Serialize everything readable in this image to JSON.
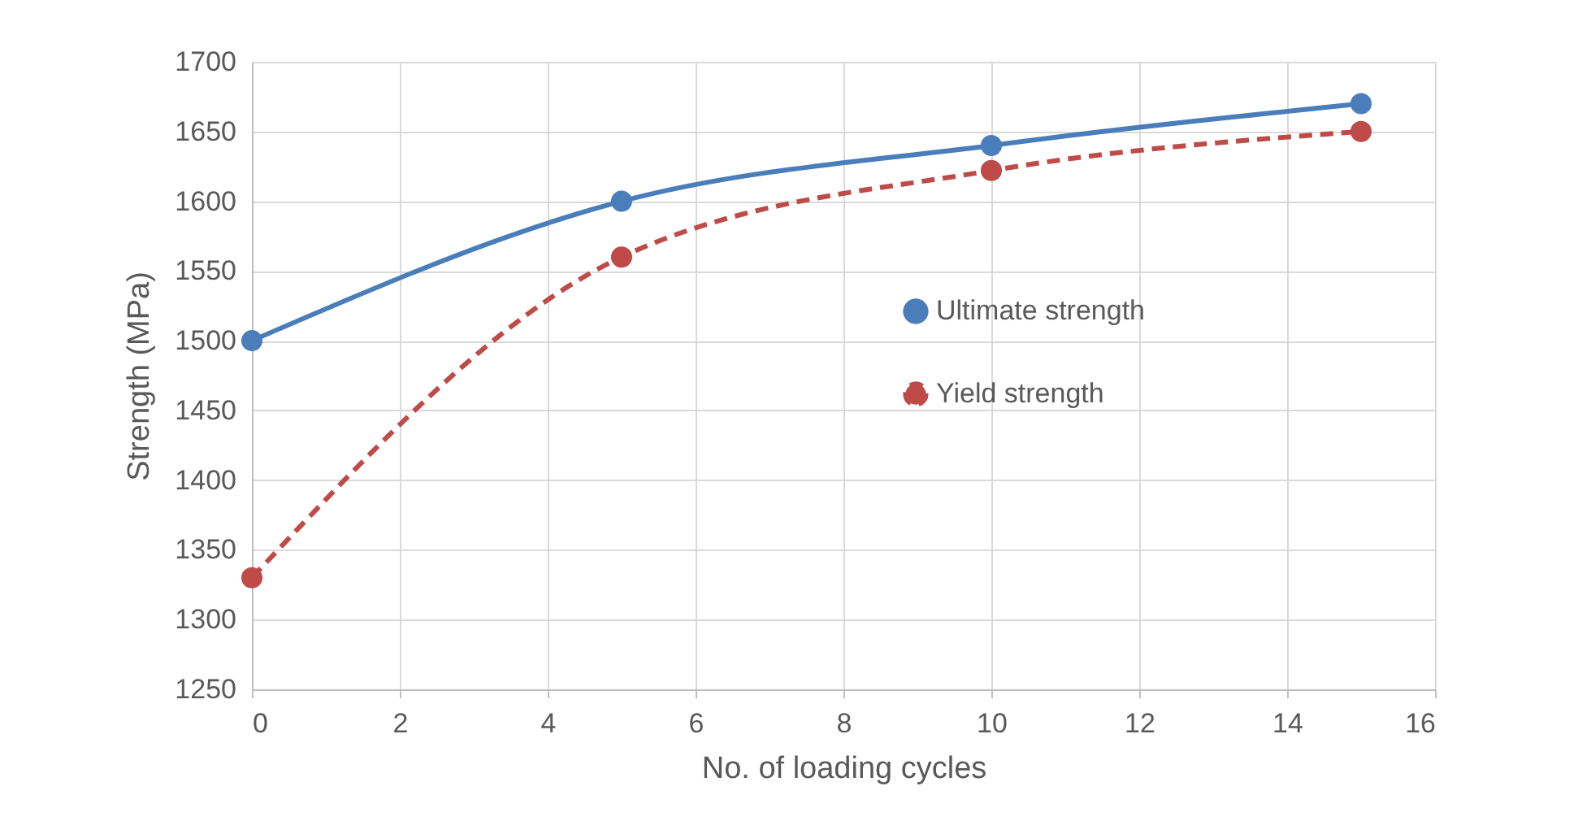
{
  "chart_data": {
    "type": "line",
    "xlabel": "No. of loading cycles",
    "ylabel": "Strength (MPa)",
    "x": [
      0,
      5,
      10,
      15
    ],
    "series": [
      {
        "name": "Ultimate strength",
        "color": "#4a7ebb",
        "values": [
          1500,
          1600,
          1640,
          1670
        ],
        "line_style": "solid"
      },
      {
        "name": "Yield strength",
        "color": "#be4b48",
        "values": [
          1330,
          1560,
          1622,
          1650
        ],
        "line_style": "dashed"
      }
    ],
    "xlim": [
      0,
      16
    ],
    "xticks": [
      0,
      2,
      4,
      6,
      8,
      10,
      12,
      14,
      16
    ],
    "ylim": [
      1250,
      1700
    ],
    "yticks": [
      1250,
      1300,
      1350,
      1400,
      1450,
      1500,
      1550,
      1600,
      1650,
      1700
    ],
    "grid": true,
    "legend": "right",
    "marker": "circle"
  }
}
